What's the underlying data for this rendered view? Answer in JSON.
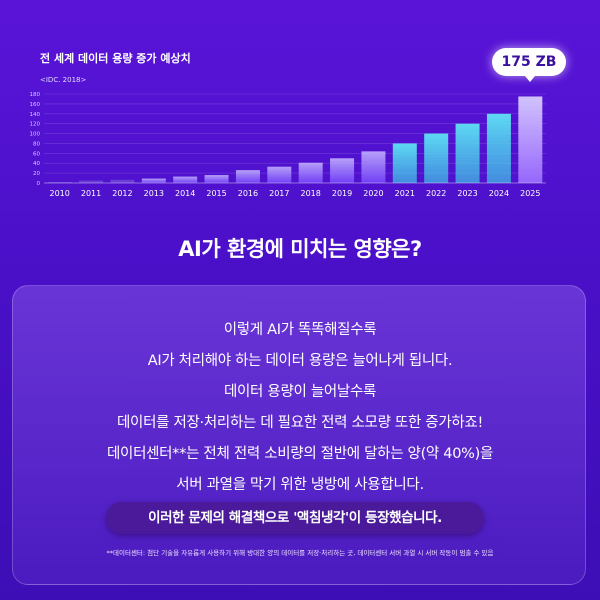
{
  "chart_data": {
    "type": "bar",
    "title": "전 세계 데이터 용량 증가 예상치",
    "source": "<IDC. 2018>",
    "categories": [
      "2010",
      "2011",
      "2012",
      "2013",
      "2014",
      "2015",
      "2016",
      "2017",
      "2018",
      "2019",
      "2020",
      "2021",
      "2022",
      "2023",
      "2024",
      "2025"
    ],
    "values": [
      2,
      5,
      6.5,
      9,
      13,
      16,
      26,
      33,
      41,
      50,
      64,
      80,
      100,
      120,
      140,
      175
    ],
    "ylim": [
      0,
      180
    ],
    "yticks": [
      0,
      20,
      40,
      60,
      80,
      100,
      120,
      140,
      160,
      180
    ],
    "annotation": "175 ZB",
    "grid": true,
    "colors": [
      "#9a6bff",
      "#b38cff",
      "#7a4bff",
      "#3ec9e8",
      "#c7b8ff"
    ]
  },
  "headline": "AI가 환경에 미치는 영향은?",
  "body_lines": [
    "이렇게 AI가 똑똑해질수록",
    "AI가 처리해야 하는 데이터 용량은 늘어나게 됩니다.",
    "데이터 용량이 늘어날수록",
    "데이터를 저장·처리하는 데 필요한 전력 소모량 또한 증가하죠!",
    "데이터센터**는 전체 전력 소비량의 절반에 달하는 양(약 40%)을",
    "서버 과열을 막기 위한 냉방에 사용합니다."
  ],
  "highlight": "이러한 문제의 해결책으로 '액침냉각'이 등장했습니다.",
  "footnote": "**데이터센터: 첨단 기술을 자유롭게 사용하기 위해 방대한 양의 데이터를 저장·처리하는 곳, 데이터센터 서버 과열 시 서버 작동이 멈출 수 있음"
}
